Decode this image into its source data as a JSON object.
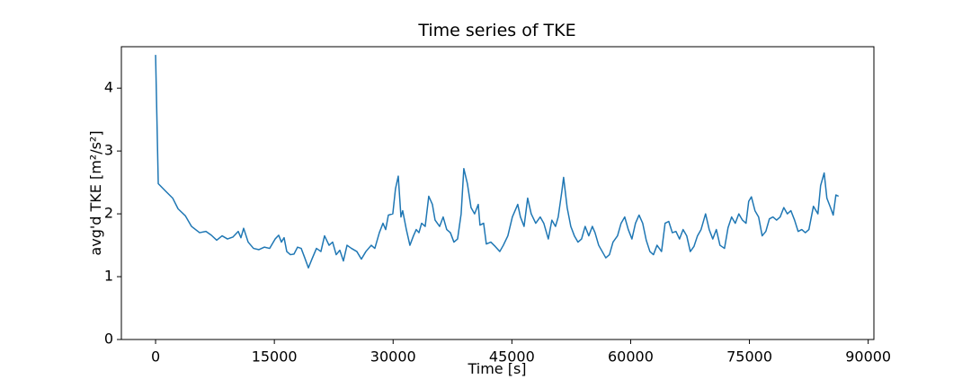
{
  "chart_data": {
    "type": "line",
    "title": "Time series of TKE",
    "x_label": "Time [s]",
    "y_label": "avg'd TKE [m²/s²]",
    "xlim": [
      -4320,
      90720
    ],
    "ylim": [
      0,
      4.66
    ],
    "xticks": [
      0,
      15000,
      30000,
      45000,
      60000,
      75000,
      90000
    ],
    "yticks": [
      0,
      1,
      2,
      3,
      4
    ],
    "grid": false,
    "series": [
      {
        "color": "#1f77b4",
        "x": [
          0,
          340,
          1360,
          2160,
          2840,
          3750,
          4540,
          5560,
          6360,
          7040,
          7720,
          8400,
          9080,
          9760,
          10440,
          10780,
          11120,
          11690,
          12370,
          13050,
          13730,
          14410,
          15100,
          15550,
          15890,
          16230,
          16570,
          17030,
          17480,
          17930,
          18390,
          18840,
          19300,
          19750,
          20320,
          20880,
          21340,
          21910,
          22360,
          22810,
          23270,
          23720,
          24180,
          24740,
          25420,
          25990,
          26560,
          27240,
          27690,
          28260,
          28720,
          29060,
          29400,
          29960,
          30300,
          30650,
          30990,
          31210,
          31670,
          32120,
          32570,
          32920,
          33260,
          33600,
          34050,
          34500,
          34960,
          35300,
          35870,
          36320,
          36770,
          37230,
          37680,
          38140,
          38590,
          38930,
          39380,
          39840,
          40290,
          40750,
          40970,
          41430,
          41770,
          42340,
          42900,
          43470,
          43920,
          44490,
          45060,
          45740,
          46080,
          46540,
          46990,
          47440,
          48010,
          48580,
          49030,
          49600,
          50050,
          50510,
          50850,
          51300,
          51530,
          51980,
          52440,
          52890,
          53350,
          53800,
          54250,
          54710,
          55160,
          55500,
          55960,
          56410,
          56860,
          57320,
          57770,
          58340,
          58790,
          59250,
          59700,
          60160,
          60610,
          61060,
          61520,
          61970,
          62430,
          62880,
          63330,
          63900,
          64350,
          64810,
          65260,
          65720,
          66170,
          66620,
          67080,
          67530,
          67990,
          68440,
          68890,
          69460,
          69920,
          70370,
          70820,
          71280,
          71850,
          72300,
          72750,
          73210,
          73660,
          74120,
          74570,
          74910,
          75250,
          75700,
          76160,
          76610,
          77070,
          77520,
          77970,
          78430,
          78880,
          79340,
          79790,
          80240,
          80700,
          81150,
          81610,
          82060,
          82510,
          83080,
          83650,
          83990,
          84440,
          84780,
          85240,
          85580,
          85920,
          86260
        ],
        "values": [
          4.53,
          2.48,
          2.35,
          2.25,
          2.08,
          1.97,
          1.8,
          1.7,
          1.72,
          1.66,
          1.58,
          1.65,
          1.6,
          1.63,
          1.72,
          1.62,
          1.77,
          1.55,
          1.45,
          1.43,
          1.47,
          1.45,
          1.6,
          1.66,
          1.55,
          1.62,
          1.4,
          1.35,
          1.36,
          1.47,
          1.45,
          1.3,
          1.14,
          1.28,
          1.45,
          1.4,
          1.65,
          1.5,
          1.55,
          1.35,
          1.42,
          1.25,
          1.5,
          1.45,
          1.4,
          1.28,
          1.4,
          1.5,
          1.45,
          1.7,
          1.85,
          1.75,
          1.98,
          2.0,
          2.4,
          2.6,
          1.95,
          2.05,
          1.75,
          1.5,
          1.65,
          1.75,
          1.7,
          1.85,
          1.8,
          2.28,
          2.15,
          1.9,
          1.8,
          1.95,
          1.75,
          1.7,
          1.55,
          1.6,
          2.0,
          2.72,
          2.48,
          2.1,
          2.0,
          2.15,
          1.82,
          1.85,
          1.52,
          1.55,
          1.48,
          1.4,
          1.5,
          1.65,
          1.95,
          2.15,
          1.95,
          1.8,
          2.25,
          2.0,
          1.85,
          1.95,
          1.85,
          1.6,
          1.9,
          1.8,
          1.95,
          2.35,
          2.58,
          2.1,
          1.8,
          1.65,
          1.55,
          1.6,
          1.8,
          1.65,
          1.8,
          1.7,
          1.5,
          1.4,
          1.3,
          1.35,
          1.55,
          1.65,
          1.85,
          1.95,
          1.75,
          1.6,
          1.85,
          1.98,
          1.85,
          1.58,
          1.4,
          1.35,
          1.5,
          1.4,
          1.85,
          1.88,
          1.7,
          1.72,
          1.6,
          1.75,
          1.65,
          1.4,
          1.48,
          1.65,
          1.75,
          2.0,
          1.75,
          1.6,
          1.75,
          1.5,
          1.45,
          1.78,
          1.95,
          1.85,
          2.0,
          1.9,
          1.85,
          2.2,
          2.27,
          2.05,
          1.95,
          1.65,
          1.72,
          1.92,
          1.95,
          1.9,
          1.95,
          2.1,
          2.0,
          2.05,
          1.9,
          1.72,
          1.75,
          1.7,
          1.75,
          2.12,
          2.0,
          2.45,
          2.65,
          2.25,
          2.1,
          1.98,
          2.3,
          2.28
        ]
      }
    ]
  }
}
